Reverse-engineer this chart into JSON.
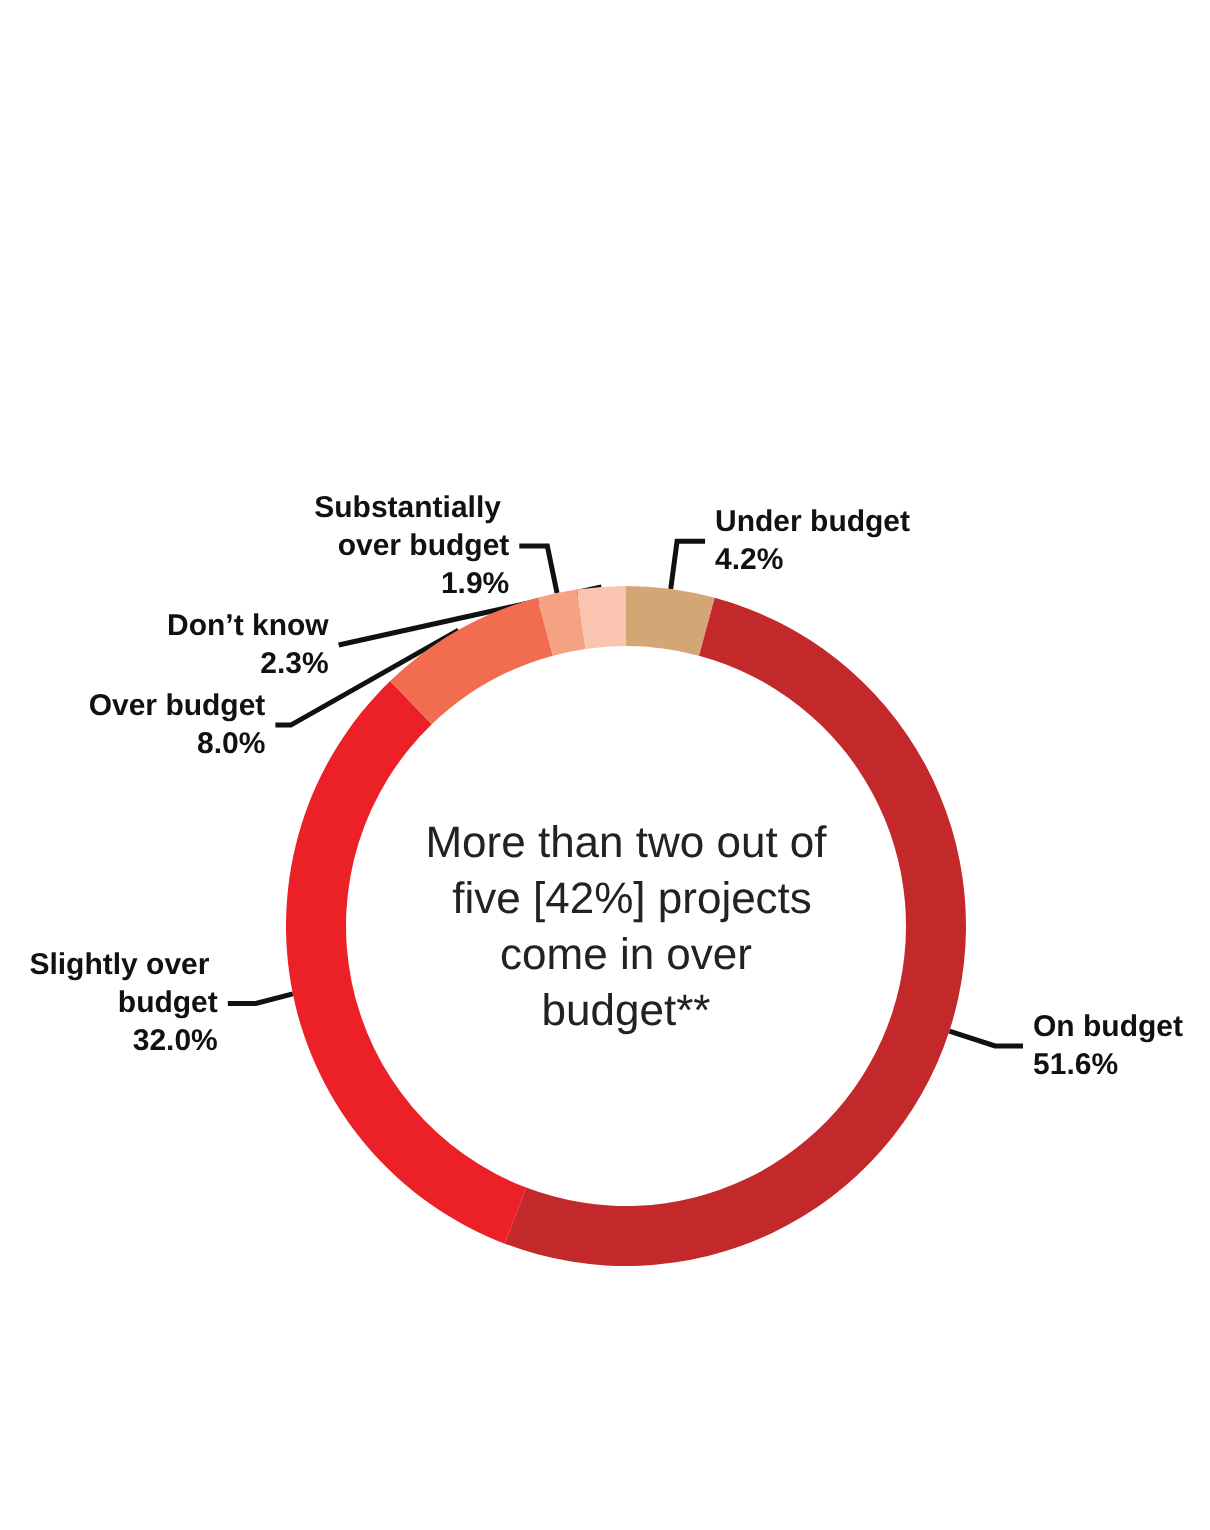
{
  "chart_data": {
    "type": "donut",
    "categories": [
      "Under budget",
      "On budget",
      "Slightly over budget",
      "Over budget",
      "Substantially over budget",
      "Don’t know"
    ],
    "values": [
      4.2,
      51.6,
      32.0,
      8.0,
      1.9,
      2.3
    ],
    "colors": [
      "#d4a676",
      "#c3282b",
      "#ec2027",
      "#f26c50",
      "#f5a283",
      "#f9c4b0"
    ],
    "value_labels": [
      "4.2%",
      "51.6%",
      "32.0%",
      "8.0%",
      "1.9%",
      "2.3%"
    ],
    "annotations": [
      "More than two out of five [42%] projects come in over budget**"
    ],
    "legend": false
  }
}
